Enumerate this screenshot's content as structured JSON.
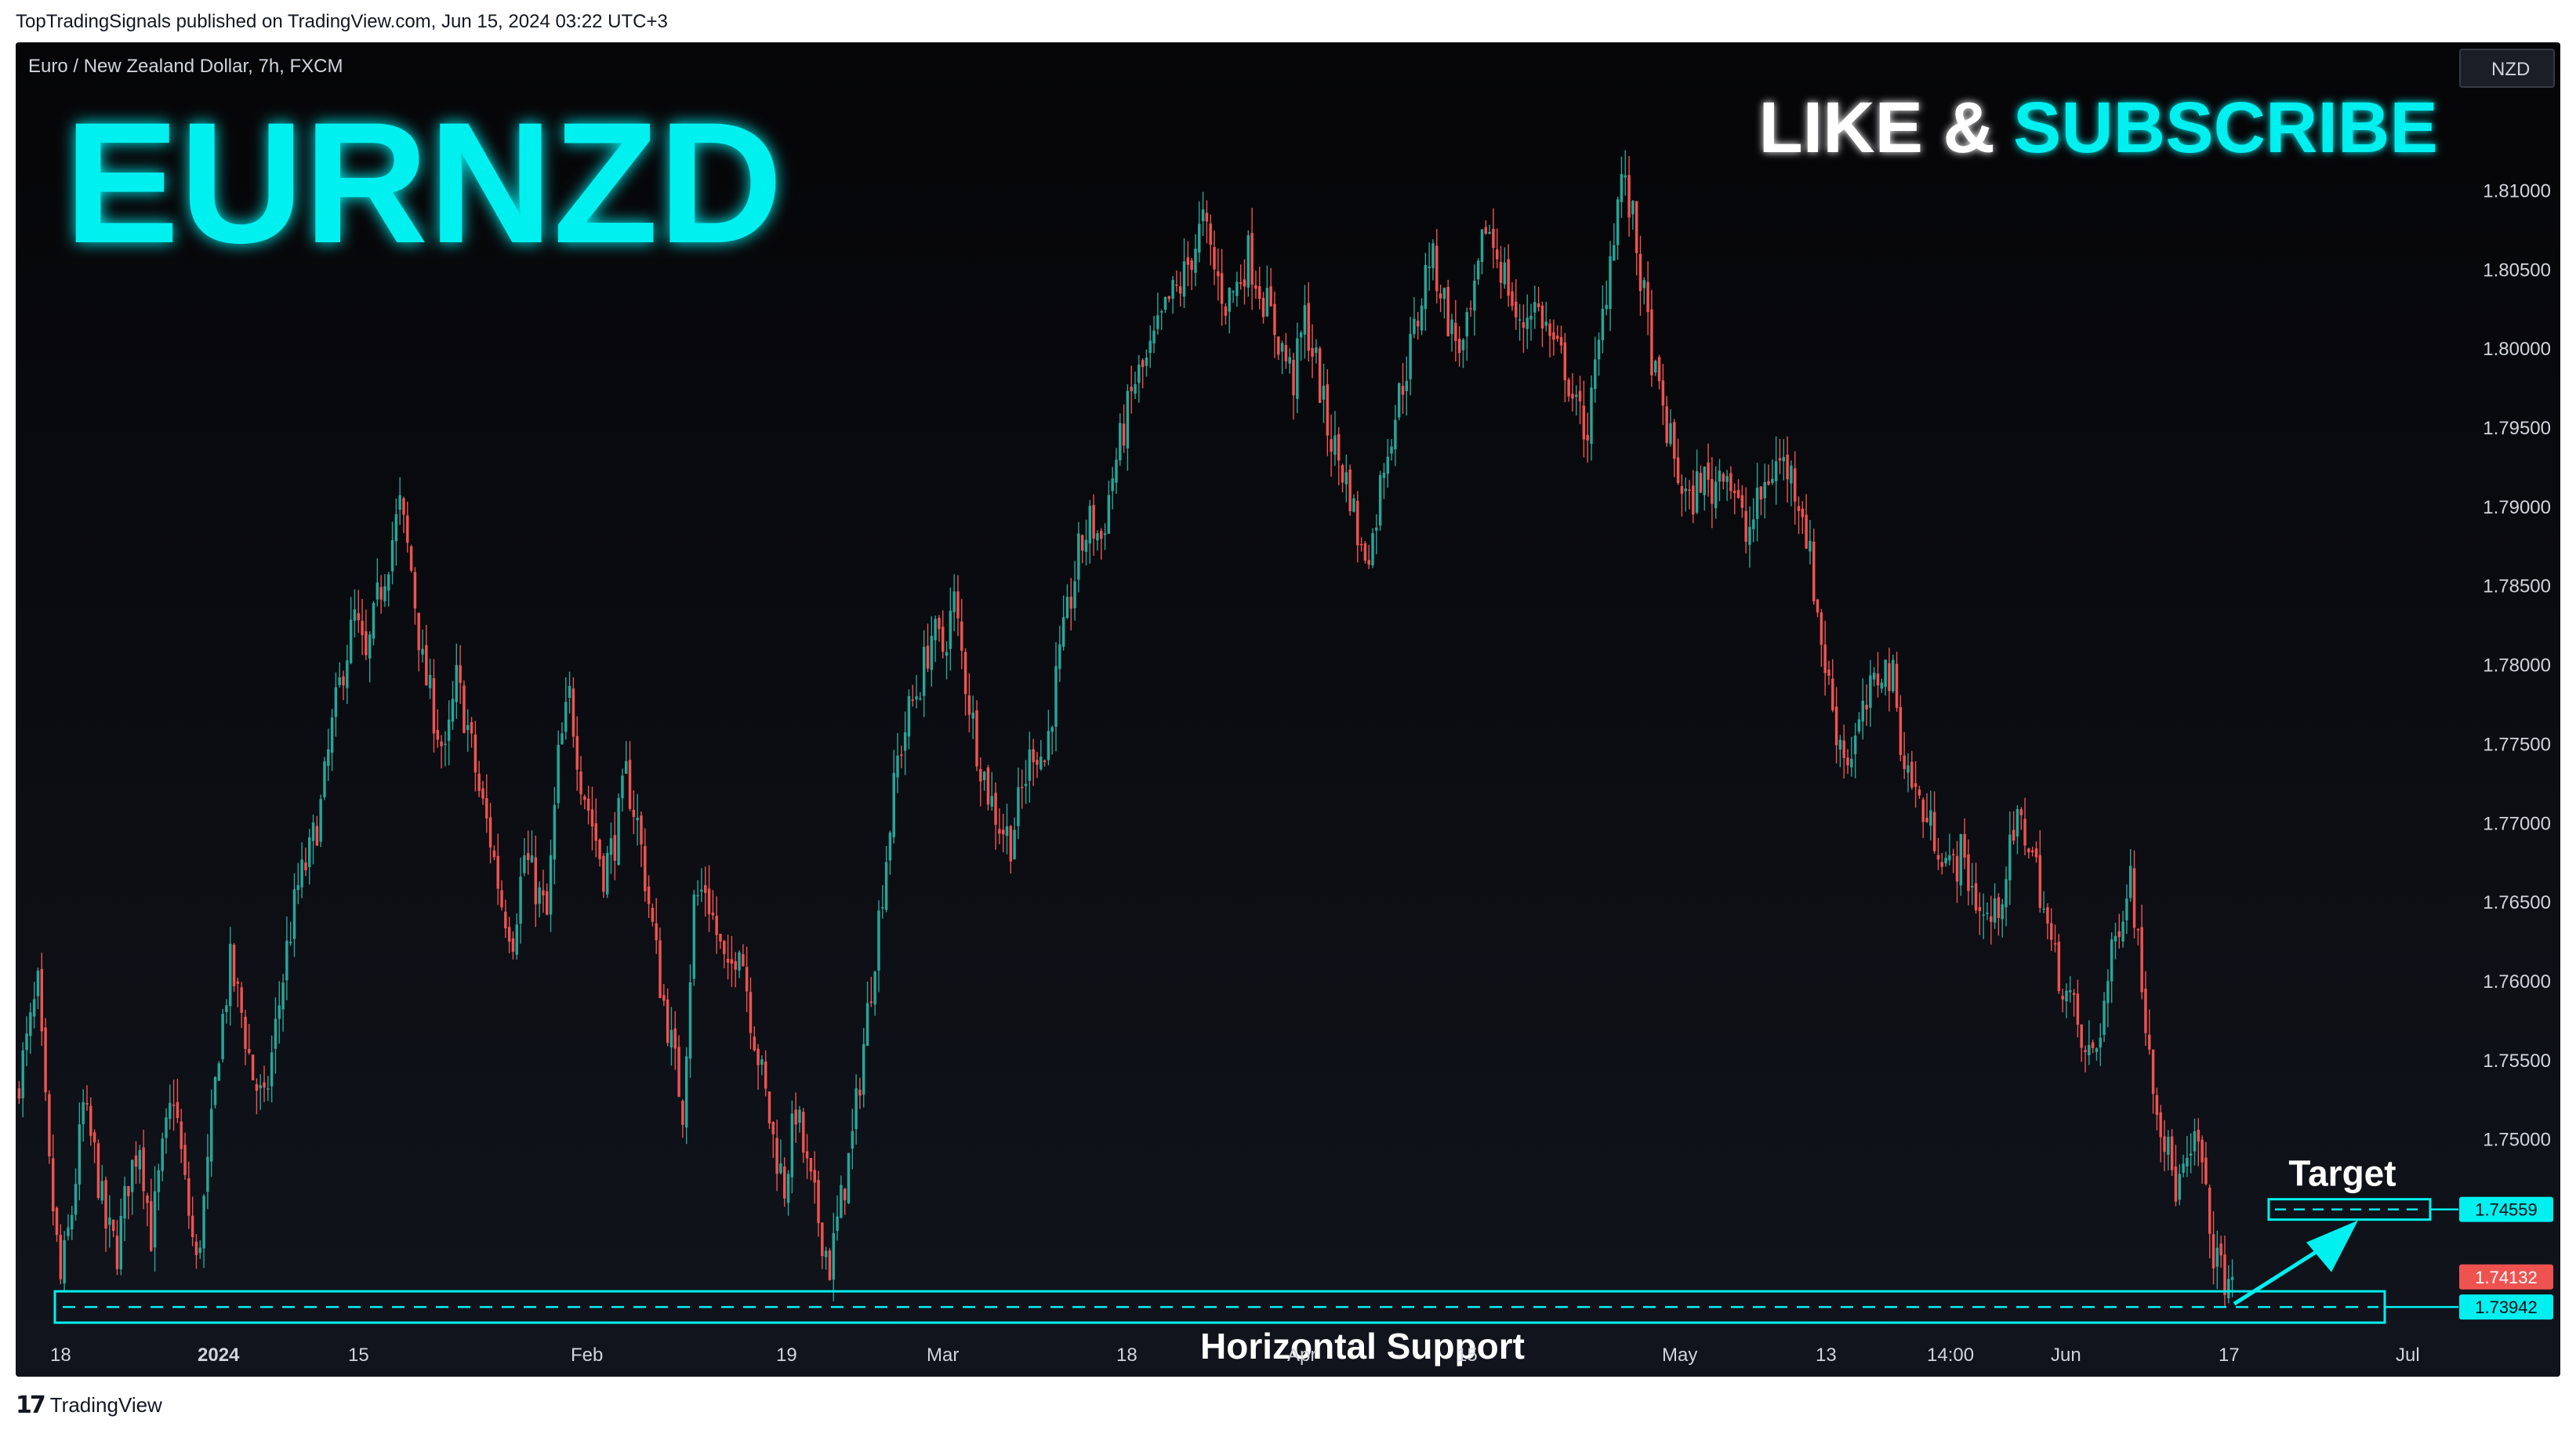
{
  "publisher_line": "TopTradingSignals published on TradingView.com, Jun 15, 2024 03:22 UTC+3",
  "footer_brand": "TradingView",
  "colors": {
    "background": "#0c0d12",
    "up": "#26a69a",
    "down": "#ef5350",
    "accent": "#00f0f0"
  },
  "chart_data": {
    "type": "candlestick",
    "symbol_line": "Euro / New Zealand Dollar, 7h, FXCM",
    "currency": "NZD",
    "headline": "EURNZD",
    "cta_left": "LIKE &",
    "cta_right": "SUBSCRIBE",
    "ylim": [
      1.7365,
      1.8185
    ],
    "y_ticks": [
      "1.81000",
      "1.80500",
      "1.80000",
      "1.79500",
      "1.79000",
      "1.78500",
      "1.78000",
      "1.77500",
      "1.77000",
      "1.76500",
      "1.76000",
      "1.75500",
      "1.75000"
    ],
    "x_ticks": [
      {
        "label": "18",
        "bold": false
      },
      {
        "label": "2024",
        "bold": true
      },
      {
        "label": "15",
        "bold": false
      },
      {
        "label": "Feb",
        "bold": false
      },
      {
        "label": "19",
        "bold": false
      },
      {
        "label": "Mar",
        "bold": false
      },
      {
        "label": "18",
        "bold": false
      },
      {
        "label": "Apr",
        "bold": false
      },
      {
        "label": "15",
        "bold": false
      },
      {
        "label": "May",
        "bold": false
      },
      {
        "label": "13",
        "bold": false
      },
      {
        "label": "14:00",
        "bold": false
      },
      {
        "label": "Jun",
        "bold": false
      },
      {
        "label": "17",
        "bold": false
      },
      {
        "label": "Jul",
        "bold": false
      }
    ],
    "price_path": [
      1.753,
      1.756,
      1.7595,
      1.748,
      1.741,
      1.7455,
      1.752,
      1.749,
      1.7445,
      1.743,
      1.7475,
      1.75,
      1.744,
      1.749,
      1.753,
      1.747,
      1.742,
      1.748,
      1.756,
      1.761,
      1.758,
      1.754,
      1.752,
      1.757,
      1.762,
      1.766,
      1.768,
      1.771,
      1.776,
      1.78,
      1.783,
      1.78,
      1.784,
      1.787,
      1.79,
      1.786,
      1.78,
      1.777,
      1.774,
      1.779,
      1.776,
      1.772,
      1.769,
      1.765,
      1.763,
      1.768,
      1.766,
      1.764,
      1.774,
      1.778,
      1.773,
      1.77,
      1.767,
      1.769,
      1.773,
      1.77,
      1.765,
      1.76,
      1.756,
      1.752,
      1.765,
      1.766,
      1.763,
      1.76,
      1.763,
      1.758,
      1.754,
      1.75,
      1.747,
      1.752,
      1.748,
      1.745,
      1.742,
      1.746,
      1.75,
      1.756,
      1.762,
      1.768,
      1.774,
      1.777,
      1.779,
      1.782,
      1.781,
      1.784,
      1.779,
      1.775,
      1.772,
      1.77,
      1.769,
      1.772,
      1.775,
      1.774,
      1.779,
      1.783,
      1.787,
      1.789,
      1.788,
      1.792,
      1.795,
      1.798,
      1.799,
      1.801,
      1.803,
      1.804,
      1.806,
      1.808,
      1.805,
      1.803,
      1.804,
      1.806,
      1.804,
      1.802,
      1.8,
      1.798,
      1.802,
      1.799,
      1.795,
      1.793,
      1.791,
      1.787,
      1.788,
      1.793,
      1.796,
      1.799,
      1.802,
      1.806,
      1.804,
      1.801,
      1.8,
      1.803,
      1.808,
      1.806,
      1.804,
      1.801,
      1.803,
      1.802,
      1.8,
      1.799,
      1.796,
      1.795,
      1.8,
      1.806,
      1.811,
      1.808,
      1.803,
      1.798,
      1.795,
      1.792,
      1.79,
      1.792,
      1.791,
      1.793,
      1.791,
      1.788,
      1.79,
      1.792,
      1.793,
      1.792,
      1.79,
      1.785,
      1.78,
      1.776,
      1.774,
      1.776,
      1.778,
      1.78,
      1.779,
      1.774,
      1.772,
      1.77,
      1.769,
      1.767,
      1.768,
      1.766,
      1.764,
      1.764,
      1.767,
      1.77,
      1.769,
      1.766,
      1.762,
      1.76,
      1.758,
      1.755,
      1.756,
      1.76,
      1.764,
      1.767,
      1.76,
      1.754,
      1.75,
      1.747,
      1.748,
      1.75,
      1.744,
      1.7415,
      1.7413
    ]
  },
  "annotations": {
    "target_label": "Target",
    "support_label": "Horizontal Support",
    "target_price": 1.74559,
    "support_price": 1.73942,
    "current_price": 1.74132,
    "target_tag": "1.74559",
    "support_tag": "1.73942",
    "current_tag": "1.74132"
  }
}
